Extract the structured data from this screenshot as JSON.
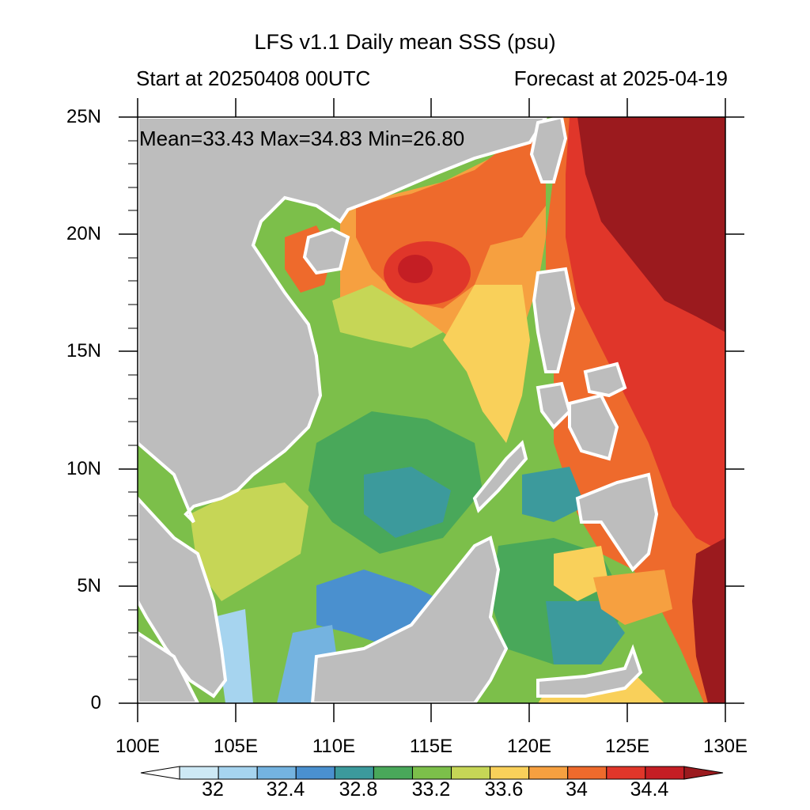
{
  "map": {
    "title": "LFS v1.1 Daily mean SSS (psu)",
    "start_label": "Start at 20250408 00UTC",
    "forecast_label": "Forecast at 2025-04-19",
    "stats_label": "Mean=33.43  Max=34.83  Min=26.80",
    "lat_labels": [
      "25N",
      "20N",
      "15N",
      "10N",
      "5N",
      "0"
    ],
    "lon_labels": [
      "100E",
      "105E",
      "110E",
      "115E",
      "120E",
      "125E",
      "130E"
    ],
    "extent": {
      "lon": [
        100,
        130
      ],
      "lat": [
        0,
        25
      ]
    },
    "colorbar": {
      "labels": [
        "32",
        "32.4",
        "32.8",
        "33.2",
        "33.6",
        "34",
        "34.4"
      ],
      "colors": [
        "#ffffff",
        "#cde9f5",
        "#a6d4ef",
        "#74b3e0",
        "#4a90cf",
        "#3c9a9c",
        "#49a85a",
        "#7cbf4a",
        "#c6d656",
        "#f9d05a",
        "#f6a040",
        "#ee6a2c",
        "#e0362a",
        "#c41e24",
        "#9b1a1e"
      ]
    },
    "colors": {
      "land": "#bdbdbd",
      "coast": "#ffffff"
    }
  }
}
